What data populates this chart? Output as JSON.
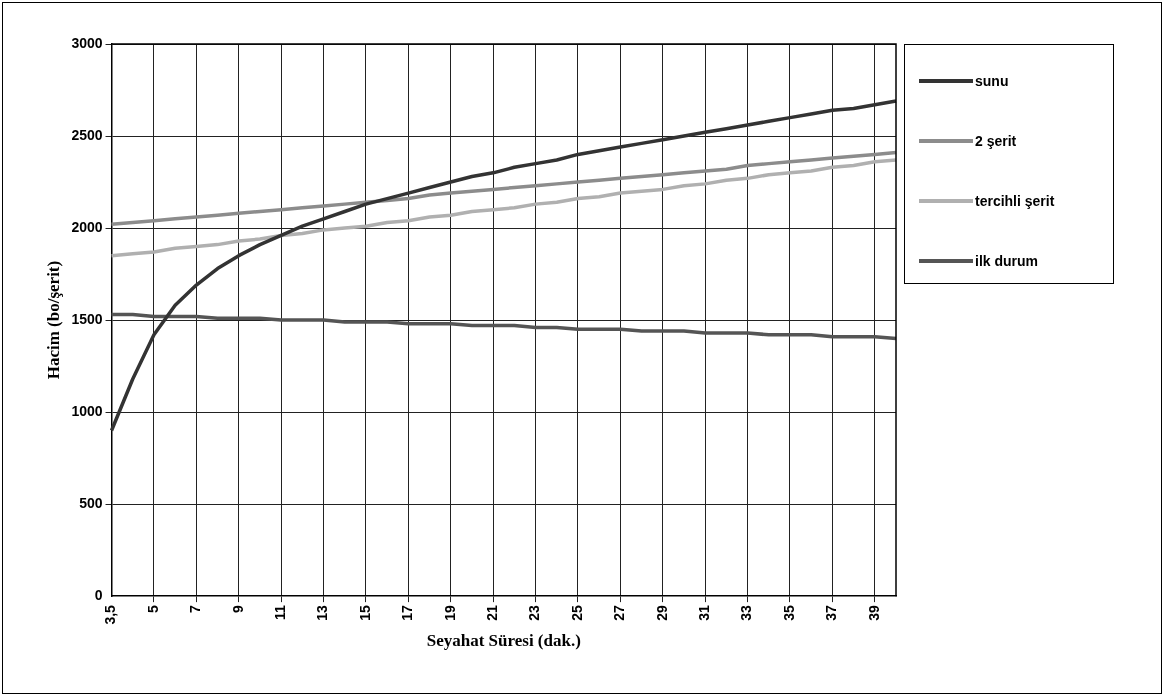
{
  "chart_data": {
    "type": "line",
    "xlabel": "Seyahat Süresi (dak.)",
    "ylabel": "Hacim (bo/şerit)",
    "categories": [
      "3,5",
      null,
      "5",
      null,
      "7",
      null,
      "9",
      null,
      "11",
      null,
      "13",
      null,
      "15",
      null,
      "17",
      null,
      "19",
      null,
      "21",
      null,
      "23",
      null,
      "25",
      null,
      "27",
      null,
      "29",
      null,
      "31",
      null,
      "33",
      null,
      "35",
      null,
      "37",
      null,
      "39",
      null
    ],
    "series": [
      {
        "name": "sunu",
        "color": "#333333",
        "values": [
          900,
          1180,
          1420,
          1580,
          1690,
          1780,
          1850,
          1910,
          1960,
          2010,
          2050,
          2090,
          2130,
          2160,
          2190,
          2220,
          2250,
          2280,
          2300,
          2330,
          2350,
          2370,
          2400,
          2420,
          2440,
          2460,
          2480,
          2500,
          2520,
          2540,
          2560,
          2580,
          2600,
          2620,
          2640,
          2650,
          2670,
          2690
        ]
      },
      {
        "name": "2 şerit",
        "color": "#8c8c8c",
        "values": [
          2020,
          2030,
          2040,
          2050,
          2060,
          2070,
          2080,
          2090,
          2100,
          2110,
          2120,
          2130,
          2140,
          2150,
          2160,
          2180,
          2190,
          2200,
          2210,
          2220,
          2230,
          2240,
          2250,
          2260,
          2270,
          2280,
          2290,
          2300,
          2310,
          2320,
          2340,
          2350,
          2360,
          2370,
          2380,
          2390,
          2400,
          2410
        ]
      },
      {
        "name": "tercihli şerit",
        "color": "#b0b0b0",
        "values": [
          1850,
          1860,
          1870,
          1890,
          1900,
          1910,
          1930,
          1940,
          1960,
          1970,
          1990,
          2000,
          2010,
          2030,
          2040,
          2060,
          2070,
          2090,
          2100,
          2110,
          2130,
          2140,
          2160,
          2170,
          2190,
          2200,
          2210,
          2230,
          2240,
          2260,
          2270,
          2290,
          2300,
          2310,
          2330,
          2340,
          2360,
          2370
        ]
      },
      {
        "name": "ilk durum",
        "color": "#555555",
        "values": [
          1530,
          1530,
          1520,
          1520,
          1520,
          1510,
          1510,
          1510,
          1500,
          1500,
          1500,
          1490,
          1490,
          1490,
          1480,
          1480,
          1480,
          1470,
          1470,
          1470,
          1460,
          1460,
          1450,
          1450,
          1450,
          1440,
          1440,
          1440,
          1430,
          1430,
          1430,
          1420,
          1420,
          1420,
          1410,
          1410,
          1410,
          1400
        ]
      }
    ],
    "ylim": [
      0,
      3000
    ],
    "yticks": [
      0,
      500,
      1000,
      1500,
      2000,
      2500,
      3000
    ],
    "grid": true,
    "legend": "right",
    "marker": "none",
    "line_style": "solid"
  }
}
